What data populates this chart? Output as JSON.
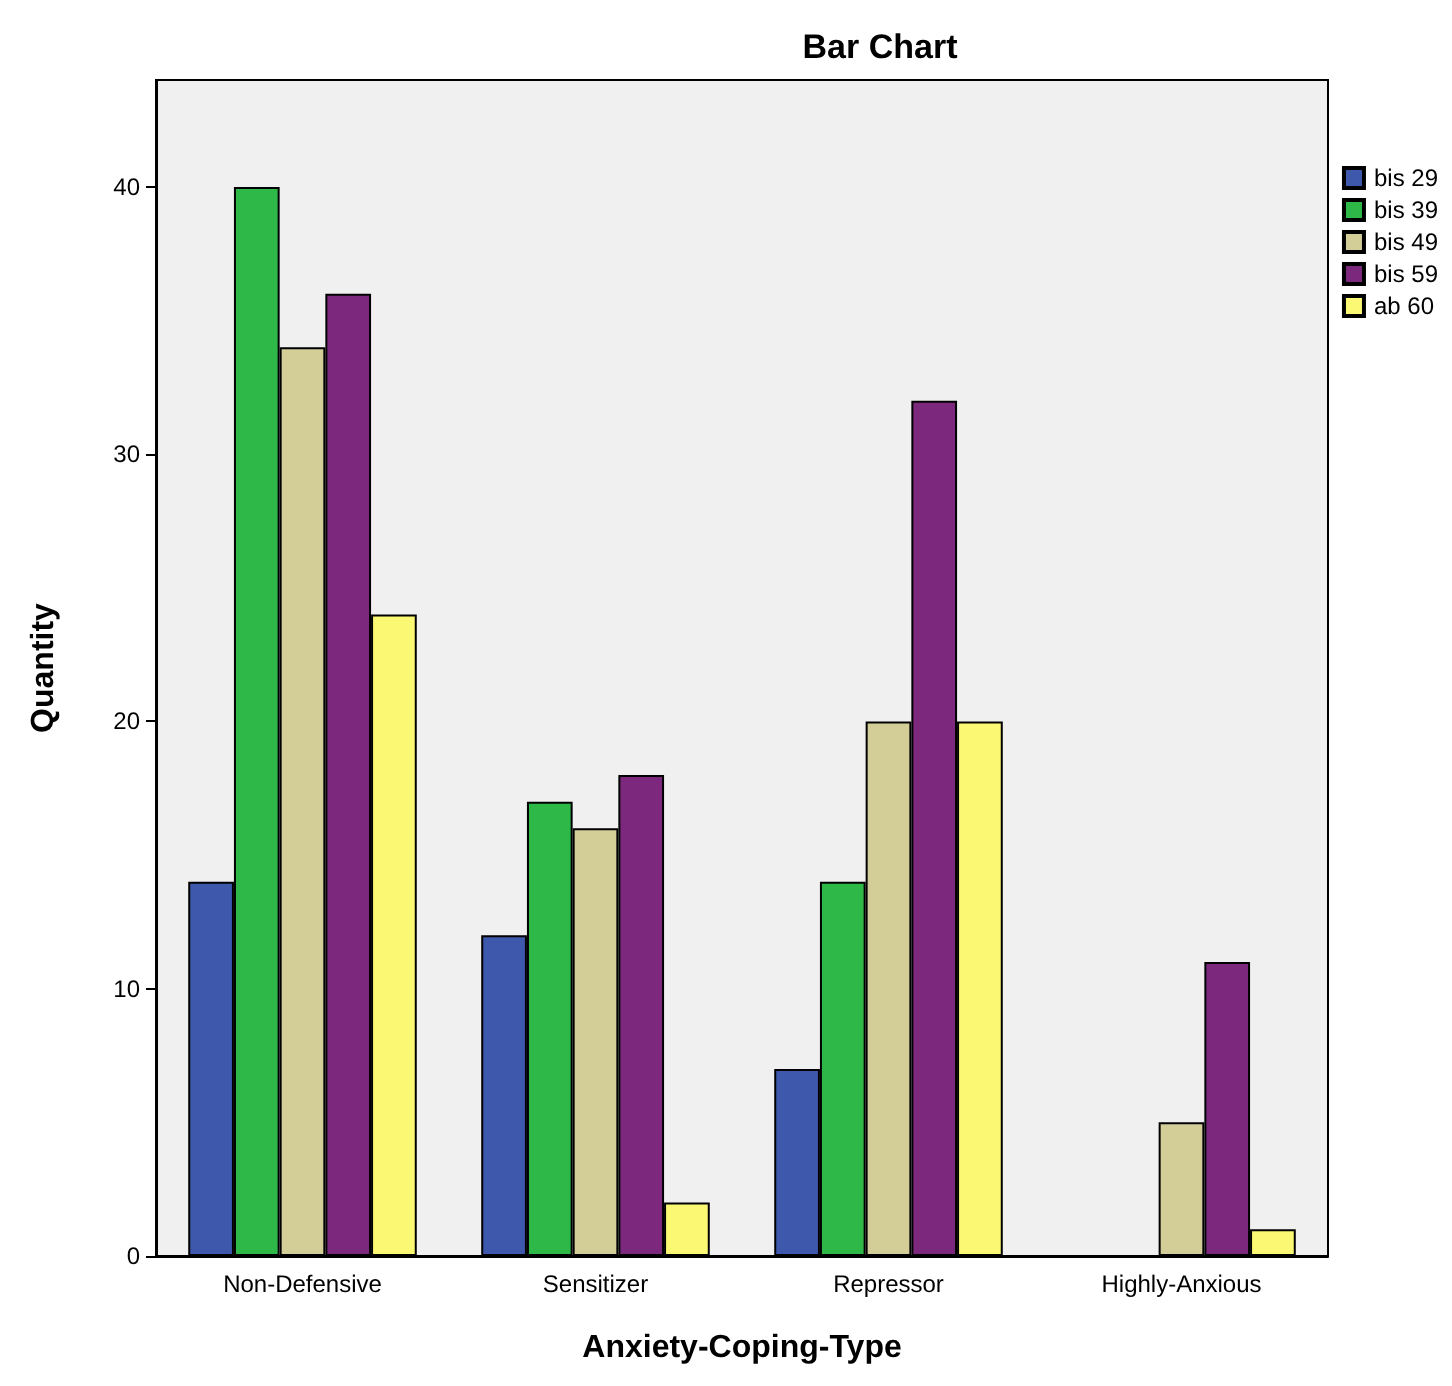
{
  "chart_data": {
    "type": "bar",
    "title": "Bar Chart",
    "xlabel": "Anxiety-Coping-Type",
    "ylabel": "Quantity",
    "categories": [
      "Non-Defensive",
      "Sensitizer",
      "Repressor",
      "Highly-Anxious"
    ],
    "series": [
      {
        "name": "bis 29",
        "color": "#3e58ac",
        "values": [
          14,
          12,
          7,
          null
        ]
      },
      {
        "name": "bis 39",
        "color": "#2eb848",
        "values": [
          40,
          17,
          14,
          null
        ]
      },
      {
        "name": "bis 49",
        "color": "#d3ce97",
        "values": [
          34,
          16,
          20,
          5
        ]
      },
      {
        "name": "bis 59",
        "color": "#7c287d",
        "values": [
          36,
          18,
          32,
          11
        ]
      },
      {
        "name": "ab 60",
        "color": "#fbf873",
        "values": [
          24,
          2,
          20,
          1
        ]
      }
    ],
    "ylim": [
      0,
      44
    ],
    "yticks": [
      0,
      10,
      20,
      30,
      40
    ],
    "grid": false,
    "legend": "top right"
  }
}
